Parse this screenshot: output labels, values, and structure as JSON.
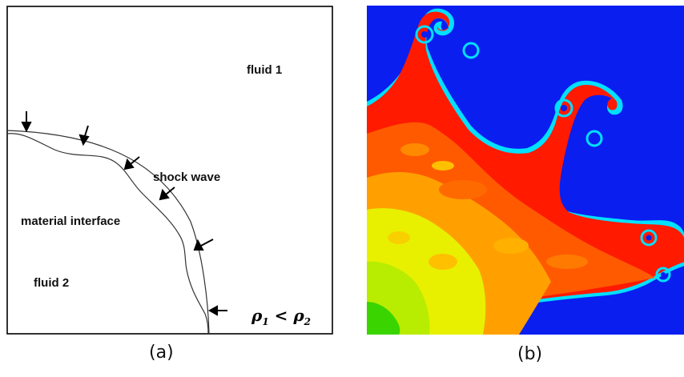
{
  "panel_a": {
    "labels": {
      "fluid_1": "fluid 1",
      "shock_wave": "shock wave",
      "material_interface": "material interface",
      "fluid_2": "fluid 2"
    },
    "density_relation": {
      "rho1": "ρ",
      "sub1": "1",
      "lt": " < ",
      "rho2": "ρ",
      "sub2": "2"
    },
    "caption": "(a)"
  },
  "panel_b": {
    "caption": "(b)",
    "colors": {
      "background": "#0a1ef0",
      "red": "#ff1a00",
      "orange": "#ff6a00",
      "amber": "#ffa000",
      "yellow": "#e8f000",
      "green": "#3ad400",
      "cyan": "#00e0ff"
    }
  }
}
